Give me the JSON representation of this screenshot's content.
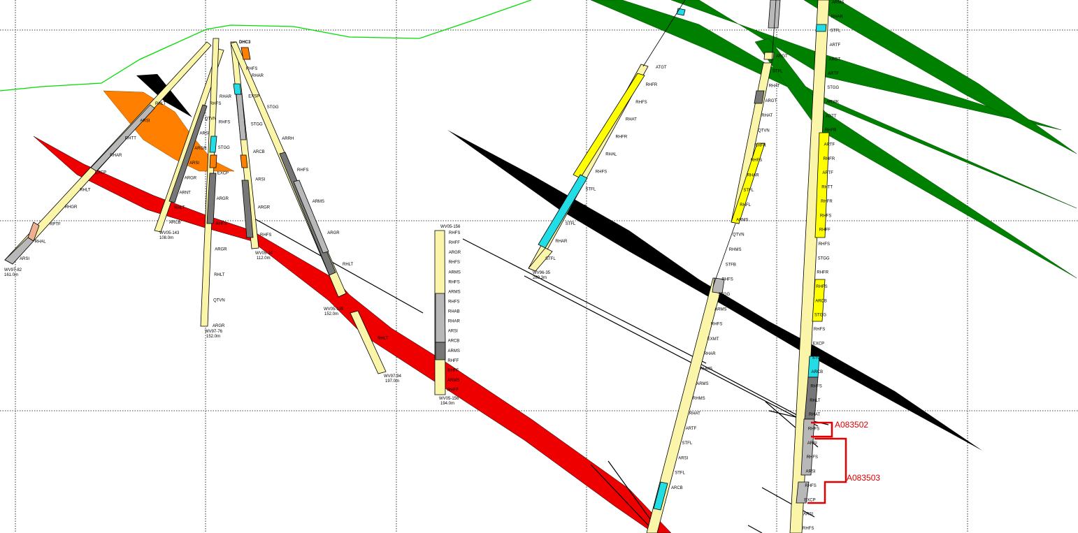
{
  "colors": {
    "background": "#ffffff",
    "grid": "#000000",
    "topography": "#00dd00",
    "red_fault": "#ee0000",
    "green_unit": "#008000",
    "black_unit": "#000000",
    "orange_unit": "#ff8000",
    "rhyolite": "#faf5a8",
    "yellow": "#ffff00",
    "cyan": "#22dde6",
    "grey": "#b8b8b8",
    "dark_grey": "#777777",
    "salmon": "#f0b090",
    "sample_outline": "#e00000"
  },
  "drill_holes": [
    {
      "id": "WV97-82",
      "depth": "161.0m"
    },
    {
      "id": "WV05-143",
      "depth": "108.0m"
    },
    {
      "id": "WV97-76",
      "depth": "152.0m"
    },
    {
      "id": "WV05-14",
      "depth": "112.0m"
    },
    {
      "id": "WV05-139",
      "depth": "152.0m"
    },
    {
      "id": "WV97-94",
      "depth": "197.0m"
    },
    {
      "id": "WV05-156",
      "depth": "194.0m"
    },
    {
      "id": "WV96-35",
      "depth": "289.3m"
    }
  ],
  "collar_label": "DHC3",
  "samples": [
    "A083502",
    "A083503"
  ],
  "lithology_labels": {
    "hole_82": [
      "RHLT",
      "ARSI",
      "RHTT",
      "RHAR",
      "EXCP",
      "RHLT",
      "RHGR",
      "RPTF",
      "RHAL",
      "ARSI"
    ],
    "hole_143": [
      "RHFS",
      "QTVN",
      "ARSI",
      "ARGR",
      "ARSI",
      "ARGR",
      "ARNT",
      "RHLT",
      "ARCB"
    ],
    "hole_76": [
      "RHAR",
      "RHFS",
      "STGG",
      "EXCP",
      "ARGR",
      "RHFS",
      "ARGR",
      "RHLT",
      "QTVN",
      "ARGR"
    ],
    "hole_14": [
      "RHFS",
      "EXSP",
      "STGG",
      "ARCB",
      "ARSI",
      "ARGR",
      "RHFS"
    ],
    "hole_139": [
      "RHAR",
      "STGG",
      "ARRH",
      "RHFS",
      "ARMS",
      "ARGR",
      "RHLT"
    ],
    "hole_94": [
      "RHLT"
    ],
    "hole_156": [
      "RHFS",
      "RHFF",
      "ARGR",
      "RHFS",
      "ARMS",
      "RHFS",
      "ARMS",
      "RHFS",
      "RHAB",
      "RHAR",
      "ARSI",
      "ARCB",
      "ARMS",
      "RHFF",
      "RHFF",
      "ARMS",
      "RHFF"
    ],
    "hole_35": [
      "ATGT",
      "RHFR",
      "RHFS",
      "RHAT",
      "RHFR",
      "RHAL",
      "RHFS",
      "STFL",
      "RHAT",
      "STFL",
      "RHAR",
      "STFL"
    ],
    "center_hole": [
      "ARGT",
      "STFL",
      "RHAT",
      "ARGT",
      "RHAT",
      "QTVN",
      "RHFR",
      "RHFS",
      "RHAR",
      "STFL",
      "RHFL",
      "ARMS",
      "QTVN",
      "RHMS",
      "STFB",
      "RHFS",
      "STGG",
      "ARMS",
      "RHFS",
      "EXMT",
      "RHAR",
      "RHMS",
      "ARMS",
      "RHMS",
      "RHAT",
      "ARTF",
      "STFL",
      "ARSI",
      "STFL",
      "ARCB"
    ],
    "right_hole": [
      "ARMS",
      "RHAR",
      "STFL",
      "ARTF",
      "ARGT",
      "ARTF",
      "STGG",
      "ARWK",
      "ADTT",
      "RHFR",
      "ARTF",
      "RHFR",
      "ARTF",
      "RHTT",
      "RHFR",
      "RHFS",
      "RHFF",
      "RHFS",
      "STGG",
      "RHFR",
      "RHFS",
      "ARCB",
      "STGG",
      "RHFS",
      "EXCP",
      "STGG",
      "ARCB",
      "RHFS",
      "RHLT",
      "RHAT",
      "RHFS",
      "ARSI",
      "RHFS",
      "ARSI",
      "RHFS",
      "EXCP",
      "ARSI",
      "RHFS"
    ]
  }
}
